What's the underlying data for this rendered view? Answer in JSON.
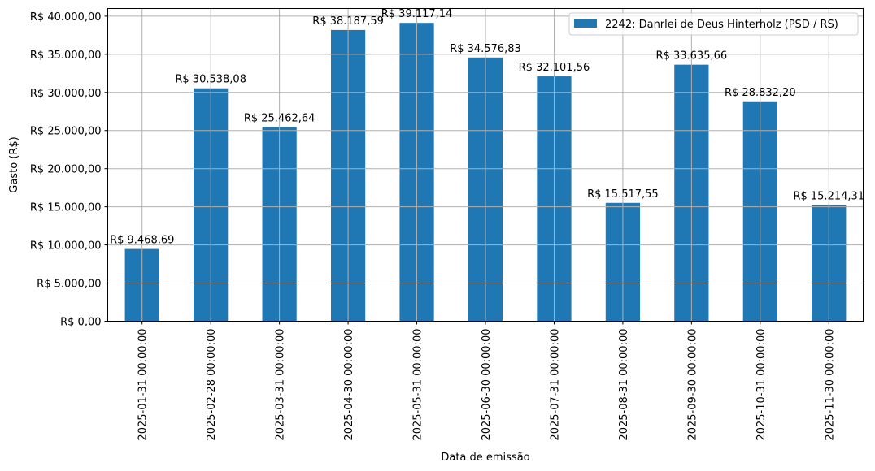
{
  "chart_data": {
    "type": "bar",
    "title": "",
    "xlabel": "Data de emissão",
    "ylabel": "Gasto (R$)",
    "ylim": [
      0,
      41000
    ],
    "grid": true,
    "legend_position": "upper right",
    "categories": [
      "2025-01-31 00:00:00",
      "2025-02-28 00:00:00",
      "2025-03-31 00:00:00",
      "2025-04-30 00:00:00",
      "2025-05-31 00:00:00",
      "2025-06-30 00:00:00",
      "2025-07-31 00:00:00",
      "2025-08-31 00:00:00",
      "2025-09-30 00:00:00",
      "2025-10-31 00:00:00",
      "2025-11-30 00:00:00"
    ],
    "series": [
      {
        "name": "2242: Danrlei de Deus Hinterholz (PSD / RS)",
        "color": "#1f77b4",
        "values": [
          9468.69,
          30538.08,
          25462.64,
          38187.59,
          39117.14,
          34576.83,
          32101.56,
          15517.55,
          33635.66,
          28832.2,
          15214.31
        ],
        "labels": [
          "R$ 9.468,69",
          "R$ 30.538,08",
          "R$ 25.462,64",
          "R$ 38.187,59",
          "R$ 39.117,14",
          "R$ 34.576,83",
          "R$ 32.101,56",
          "R$ 15.517,55",
          "R$ 33.635,66",
          "R$ 28.832,20",
          "R$ 15.214,31"
        ]
      }
    ],
    "yticks": [
      0,
      5000,
      10000,
      15000,
      20000,
      25000,
      30000,
      35000,
      40000
    ],
    "ytick_labels": [
      "R$ 0,00",
      "R$ 5.000,00",
      "R$ 10.000,00",
      "R$ 15.000,00",
      "R$ 20.000,00",
      "R$ 25.000,00",
      "R$ 30.000,00",
      "R$ 35.000,00",
      "R$ 40.000,00"
    ]
  },
  "colors": {
    "bar": "#1f77b4",
    "grid": "#b0b0b0",
    "axis": "#000000"
  }
}
